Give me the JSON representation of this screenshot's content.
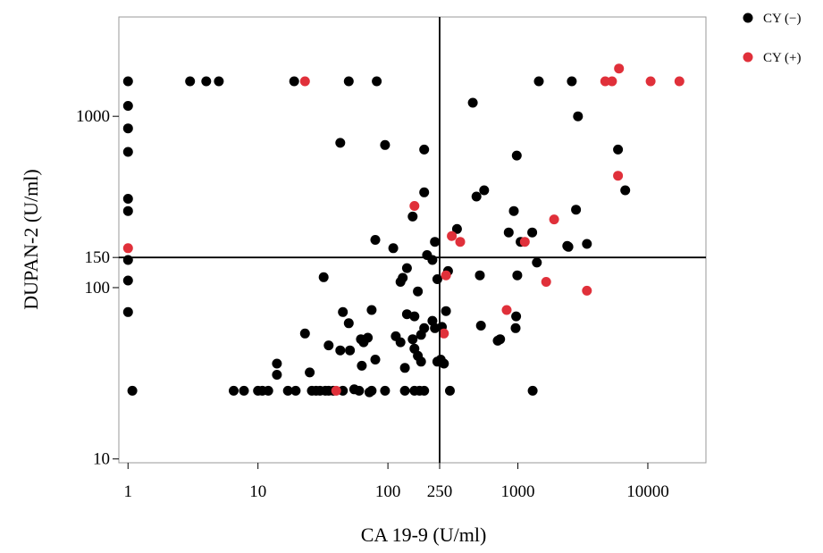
{
  "colors": {
    "cy_neg": "#000000",
    "cy_pos": "#e0303a",
    "cutoff_line": "#000000",
    "frame": "#999999"
  },
  "legend": [
    {
      "label": "CY (−)",
      "color": "#000000"
    },
    {
      "label": "CY (+)",
      "color": "#e0303a"
    }
  ],
  "chart_data": {
    "type": "scatter",
    "xlabel": "CA 19-9 (U/ml)",
    "ylabel": "DUPAN-2 (U/ml)",
    "xscale": "log",
    "yscale": "log",
    "xlim": [
      0.85,
      28000
    ],
    "ylim": [
      9.5,
      3800
    ],
    "x_ticks": [
      {
        "value": 1,
        "label": "1"
      },
      {
        "value": 10,
        "label": "10"
      },
      {
        "value": 100,
        "label": "100"
      },
      {
        "value": 250,
        "label": "250"
      },
      {
        "value": 1000,
        "label": "1000"
      },
      {
        "value": 10000,
        "label": "10000"
      }
    ],
    "y_ticks": [
      {
        "value": 10,
        "label": "10"
      },
      {
        "value": 100,
        "label": "100"
      },
      {
        "value": 150,
        "label": "150"
      },
      {
        "value": 1000,
        "label": "1000"
      }
    ],
    "cutoff_lines": {
      "x": 250,
      "y": 150
    },
    "grid": false,
    "legend_position": "outside-right-top",
    "series": [
      {
        "name": "CY (−)",
        "color": "#000000",
        "points": [
          [
            1,
            1600
          ],
          [
            1,
            1150
          ],
          [
            1,
            850
          ],
          [
            1,
            620
          ],
          [
            1,
            330
          ],
          [
            1,
            280
          ],
          [
            1,
            145
          ],
          [
            1,
            110
          ],
          [
            1,
            72
          ],
          [
            1.08,
            25
          ],
          [
            3,
            1600
          ],
          [
            4,
            1600
          ],
          [
            5,
            1600
          ],
          [
            19,
            1600
          ],
          [
            50,
            1600
          ],
          [
            82,
            1600
          ],
          [
            1450,
            1600
          ],
          [
            2600,
            1600
          ],
          [
            450,
            1200
          ],
          [
            2900,
            1000
          ],
          [
            43,
            700
          ],
          [
            95,
            680
          ],
          [
            190,
            640
          ],
          [
            980,
            590
          ],
          [
            5900,
            640
          ],
          [
            550,
            370
          ],
          [
            480,
            340
          ],
          [
            190,
            360
          ],
          [
            6700,
            370
          ],
          [
            930,
            280
          ],
          [
            2800,
            285
          ],
          [
            340,
            220
          ],
          [
            1290,
            210
          ],
          [
            850,
            210
          ],
          [
            1050,
            185
          ],
          [
            2400,
            175
          ],
          [
            2450,
            173
          ],
          [
            3400,
            180
          ],
          [
            80,
            190
          ],
          [
            230,
            185
          ],
          [
            110,
            170
          ],
          [
            155,
            260
          ],
          [
            200,
            155
          ],
          [
            220,
            145
          ],
          [
            140,
            130
          ],
          [
            170,
            95
          ],
          [
            290,
            125
          ],
          [
            240,
            112
          ],
          [
            125,
            108
          ],
          [
            130,
            114
          ],
          [
            32,
            115
          ],
          [
            510,
            118
          ],
          [
            1400,
            140
          ],
          [
            990,
            118
          ],
          [
            45,
            72
          ],
          [
            75,
            74
          ],
          [
            140,
            70
          ],
          [
            160,
            68
          ],
          [
            50,
            62
          ],
          [
            230,
            58
          ],
          [
            190,
            58
          ],
          [
            260,
            59
          ],
          [
            220,
            64
          ],
          [
            280,
            73
          ],
          [
            520,
            60
          ],
          [
            960,
            58
          ],
          [
            970,
            68
          ],
          [
            180,
            53
          ],
          [
            155,
            50
          ],
          [
            125,
            48
          ],
          [
            115,
            52
          ],
          [
            70,
            51
          ],
          [
            65,
            48
          ],
          [
            62,
            50
          ],
          [
            23,
            54
          ],
          [
            35,
            46
          ],
          [
            43,
            43
          ],
          [
            51,
            43
          ],
          [
            160,
            44
          ],
          [
            170,
            40
          ],
          [
            80,
            38
          ],
          [
            730,
            50
          ],
          [
            700,
            49
          ],
          [
            240,
            37
          ],
          [
            255,
            38
          ],
          [
            270,
            36
          ],
          [
            180,
            37
          ],
          [
            135,
            34
          ],
          [
            63,
            35
          ],
          [
            14,
            36
          ],
          [
            14,
            31
          ],
          [
            25,
            32
          ],
          [
            55,
            25.5
          ],
          [
            6.5,
            25
          ],
          [
            7.8,
            25
          ],
          [
            10,
            25
          ],
          [
            10.8,
            25
          ],
          [
            12,
            25
          ],
          [
            17,
            25
          ],
          [
            19.5,
            25
          ],
          [
            26,
            25
          ],
          [
            28,
            25
          ],
          [
            30,
            25
          ],
          [
            33,
            25
          ],
          [
            35,
            25
          ],
          [
            38,
            25
          ],
          [
            45,
            25
          ],
          [
            60,
            25
          ],
          [
            75,
            25
          ],
          [
            72,
            24.5
          ],
          [
            95,
            25
          ],
          [
            135,
            25
          ],
          [
            160,
            25
          ],
          [
            175,
            25
          ],
          [
            190,
            25
          ],
          [
            300,
            25
          ],
          [
            1300,
            25
          ]
        ]
      },
      {
        "name": "CY (+)",
        "color": "#e0303a",
        "points": [
          [
            23,
            1600
          ],
          [
            4700,
            1600
          ],
          [
            5300,
            1600
          ],
          [
            6000,
            1900
          ],
          [
            10500,
            1600
          ],
          [
            17500,
            1600
          ],
          [
            5900,
            450
          ],
          [
            160,
            300
          ],
          [
            1900,
            250
          ],
          [
            310,
            200
          ],
          [
            360,
            185
          ],
          [
            1130,
            185
          ],
          [
            1,
            170
          ],
          [
            280,
            118
          ],
          [
            1650,
            108
          ],
          [
            3400,
            96
          ],
          [
            820,
            74
          ],
          [
            270,
            54
          ],
          [
            40,
            25
          ]
        ]
      }
    ]
  }
}
